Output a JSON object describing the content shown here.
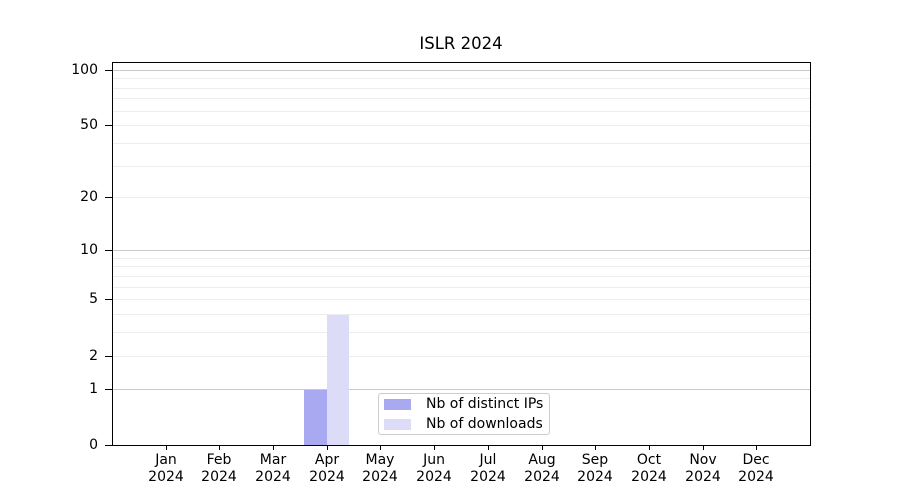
{
  "chart_data": {
    "type": "bar",
    "title": "ISLR 2024",
    "categories": [
      "Jan",
      "Feb",
      "Mar",
      "Apr",
      "May",
      "Jun",
      "Jul",
      "Aug",
      "Sep",
      "Oct",
      "Nov",
      "Dec"
    ],
    "category_year": "2024",
    "series": [
      {
        "name": "Nb of distinct IPs",
        "color": "#a9a9f1",
        "values": [
          0,
          0,
          0,
          1,
          0,
          0,
          0,
          0,
          0,
          0,
          0,
          0
        ]
      },
      {
        "name": "Nb of downloads",
        "color": "#dcdcf8",
        "values": [
          0,
          0,
          0,
          4,
          0,
          0,
          0,
          0,
          0,
          0,
          0,
          0
        ]
      }
    ],
    "y_scale": "log10(1+y)",
    "ylim": [
      0,
      110
    ],
    "y_ticks": [
      0,
      1,
      2,
      5,
      10,
      20,
      50,
      100
    ],
    "grid": {
      "major_values": [
        1,
        10,
        100
      ],
      "minor_values": [
        2,
        3,
        4,
        5,
        6,
        7,
        8,
        9,
        20,
        30,
        40,
        50,
        60,
        70,
        80,
        90
      ],
      "major_color": "#c9c9c9",
      "minor_color": "#ededed"
    },
    "legend_position": "lower center",
    "axis_color": "#000000",
    "background_color": "#ffffff"
  }
}
